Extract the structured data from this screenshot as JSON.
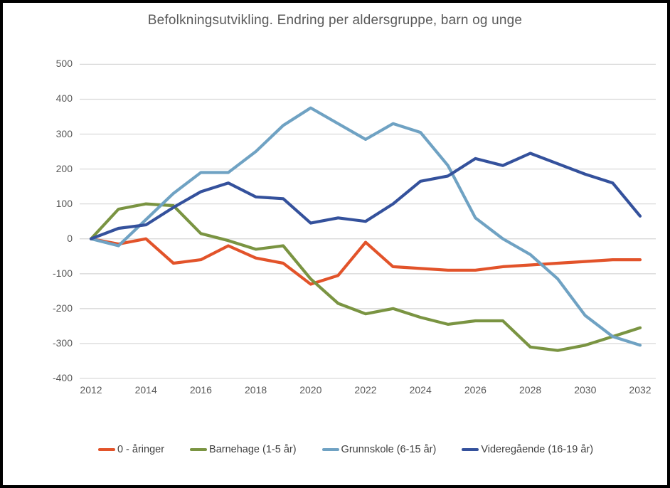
{
  "title": "Befolkningsutvikling. Endring per aldersgruppe, barn og unge",
  "colors": {
    "gridline": "#d9d9d9",
    "tick_text": "#595959",
    "title_text": "#595959",
    "legend_text": "#3f3f3f",
    "frame": "#000000",
    "background": "#ffffff"
  },
  "chart_data": {
    "type": "line",
    "title": "Befolkningsutvikling. Endring per aldersgruppe, barn og unge",
    "x": [
      2012,
      2013,
      2014,
      2015,
      2016,
      2017,
      2018,
      2019,
      2020,
      2021,
      2022,
      2023,
      2024,
      2025,
      2026,
      2027,
      2028,
      2029,
      2030,
      2031,
      2032
    ],
    "x_tick_labels": [
      "2012",
      "2014",
      "2016",
      "2018",
      "2020",
      "2022",
      "2024",
      "2026",
      "2028",
      "2030",
      "2032"
    ],
    "y_ticks": [
      500,
      400,
      300,
      200,
      100,
      0,
      -100,
      -200,
      -300,
      -400
    ],
    "ylim": [
      -400,
      500
    ],
    "grid": true,
    "legend_position": "bottom",
    "series": [
      {
        "name": "0 - åringer",
        "color": "#e2532a",
        "values": [
          0,
          -15,
          0,
          -70,
          -60,
          -20,
          -55,
          -70,
          -130,
          -105,
          -10,
          -80,
          -85,
          -90,
          -90,
          -80,
          -75,
          -70,
          -65,
          -60,
          -60
        ]
      },
      {
        "name": "Barnehage (1-5 år)",
        "color": "#7a9442",
        "values": [
          0,
          85,
          100,
          95,
          15,
          -5,
          -30,
          -20,
          -115,
          -185,
          -215,
          -200,
          -225,
          -245,
          -235,
          -235,
          -310,
          -320,
          -305,
          -280,
          -255
        ]
      },
      {
        "name": "Grunnskole (6-15 år)",
        "color": "#6fa2c3",
        "values": [
          0,
          -20,
          55,
          130,
          190,
          190,
          250,
          325,
          375,
          330,
          285,
          330,
          305,
          210,
          60,
          0,
          -45,
          -115,
          -220,
          -280,
          -305
        ]
      },
      {
        "name": "Videregående (16-19 år)",
        "color": "#34519c",
        "values": [
          0,
          30,
          40,
          90,
          135,
          160,
          120,
          115,
          45,
          60,
          50,
          100,
          165,
          180,
          230,
          210,
          245,
          215,
          185,
          160,
          65
        ]
      }
    ]
  }
}
